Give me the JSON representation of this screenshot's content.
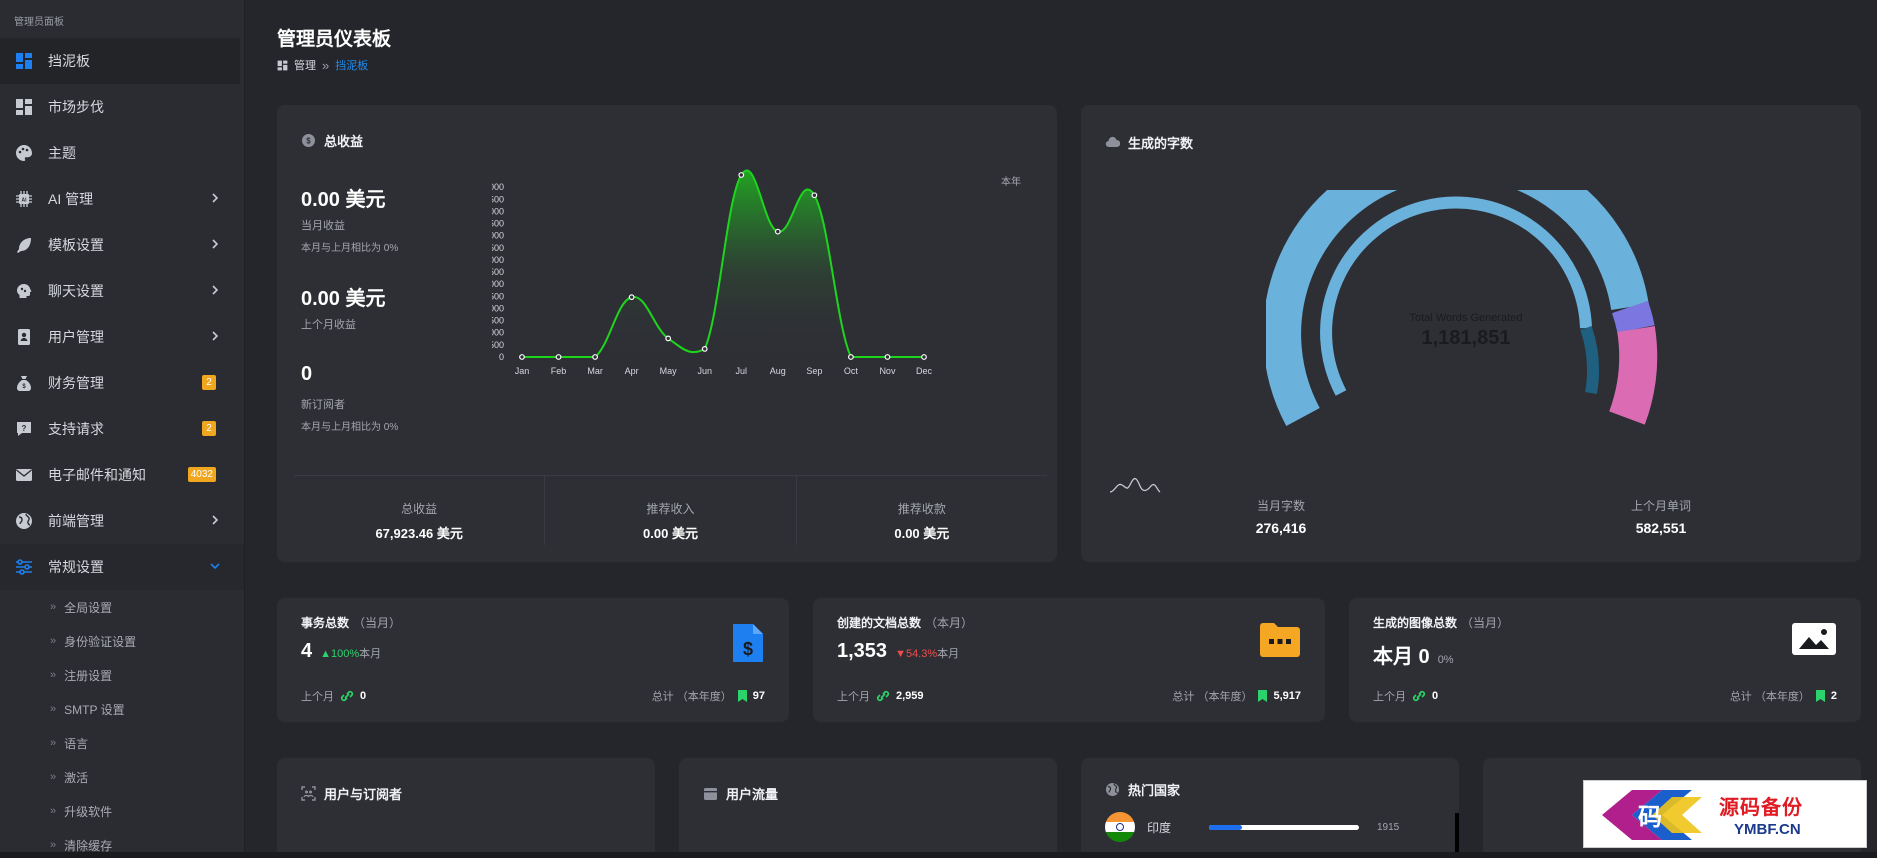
{
  "sidebar": {
    "header": "管理员面板",
    "items": [
      {
        "label": "挡泥板",
        "icon": "dashboard-icon"
      },
      {
        "label": "市场步伐",
        "icon": "marketplace-icon"
      },
      {
        "label": "主题",
        "icon": "palette-icon"
      },
      {
        "label": "AI 管理",
        "icon": "chip-icon"
      },
      {
        "label": "模板设置",
        "icon": "feather-icon"
      },
      {
        "label": "聊天设置",
        "icon": "brain-icon"
      },
      {
        "label": "用户管理",
        "icon": "user-card-icon"
      },
      {
        "label": "财务管理",
        "icon": "money-bag-icon",
        "badge": "2"
      },
      {
        "label": "支持请求",
        "icon": "help-icon",
        "badge": "2"
      },
      {
        "label": "电子邮件和通知",
        "icon": "mail-icon",
        "badge": "4032"
      },
      {
        "label": "前端管理",
        "icon": "globe-icon"
      },
      {
        "label": "常规设置",
        "icon": "sliders-icon"
      }
    ],
    "sub_items": [
      "全局设置",
      "身份验证设置",
      "注册设置",
      "SMTP 设置",
      "语言",
      "激活",
      "升级软件",
      "清除缓存"
    ]
  },
  "header": {
    "title": "管理员仪表板",
    "breadcrumb_root": "管理",
    "breadcrumb_sep": "»",
    "breadcrumb_current": "挡泥板"
  },
  "revenue": {
    "title": "总收益",
    "this_month_value": "0.00 美元",
    "this_month_label": "当月收益",
    "this_month_compare": "本月与上月相比为 0%",
    "last_month_value": "0.00 美元",
    "last_month_label": "上个月收益",
    "subs_value": "0",
    "subs_label": "新订阅者",
    "subs_compare": "本月与上月相比为 0%",
    "period_label": "本年",
    "footer": [
      {
        "label": "总收益",
        "value": "67,923.46 美元"
      },
      {
        "label": "推荐收入",
        "value": "0.00 美元"
      },
      {
        "label": "推荐收款",
        "value": "0.00 美元"
      }
    ]
  },
  "chart_data": {
    "type": "area",
    "title": "",
    "xlabel": "",
    "ylabel": "",
    "categories": [
      "Jan",
      "Feb",
      "Mar",
      "Apr",
      "May",
      "Jun",
      "Jul",
      "Aug",
      "Sep",
      "Oct",
      "Nov",
      "Dec"
    ],
    "values": [
      0,
      0,
      0,
      7400,
      2300,
      1000,
      22500,
      15500,
      20000,
      0,
      0,
      0
    ],
    "y_ticks": [
      "0",
      "1,500",
      "3,000",
      "4,500",
      "6,000",
      "7,500",
      "9,000",
      "10,500",
      "12,000",
      "13,500",
      "15,000",
      "16,500",
      "18,000",
      "19,500",
      "21,000"
    ],
    "ylim": [
      0,
      22500
    ],
    "line_color": "#1ed51e",
    "grid": false
  },
  "words": {
    "title": "生成的字数",
    "center_label": "Total Words Generated",
    "center_value": "1,181,851",
    "this_month_label": "当月字数",
    "this_month_value": "276,416",
    "last_month_label": "上个月单词",
    "last_month_value": "582,551",
    "colors": {
      "outer": "#6ab2dc",
      "inner": "#6ab2dc",
      "purple": "#7b76e0",
      "pink": "#db6cb4",
      "dark": "#1f5f80"
    }
  },
  "stats": [
    {
      "title": "事务总数",
      "period": "（当月）",
      "value": "4",
      "change": "▲100%",
      "change_suffix": "本月",
      "change_color": "#2bd46b",
      "last_label": "上个月",
      "last_value": "0",
      "total_label": "总计 （本年度）",
      "total_value": "97",
      "icon": "invoice-dollar-icon"
    },
    {
      "title": "创建的文档总数",
      "period": "（本月）",
      "value": "1,353",
      "change": "▼54.3%",
      "change_suffix": "本月",
      "change_color": "#ef4b4b",
      "last_label": "上个月",
      "last_value": "2,959",
      "total_label": "总计 （本年度）",
      "total_value": "5,917",
      "icon": "folder-icon"
    },
    {
      "title": "生成的图像总数",
      "period": "（当月）",
      "value": "本月 0",
      "change": "0%",
      "change_suffix": "",
      "change_color": "#a4a6af",
      "last_label": "上个月",
      "last_value": "0",
      "total_label": "总计 （本年度）",
      "total_value": "2",
      "icon": "image-icon"
    }
  ],
  "bottom": {
    "users_title": "用户与订阅者",
    "traffic_title": "用户流量",
    "countries_title": "热门国家",
    "country": {
      "name": "印度",
      "value": "1915",
      "fill": 0.22
    }
  },
  "watermark": {
    "text": "源码备份",
    "sub": "YMBF.CN",
    "logo_char": "码"
  }
}
